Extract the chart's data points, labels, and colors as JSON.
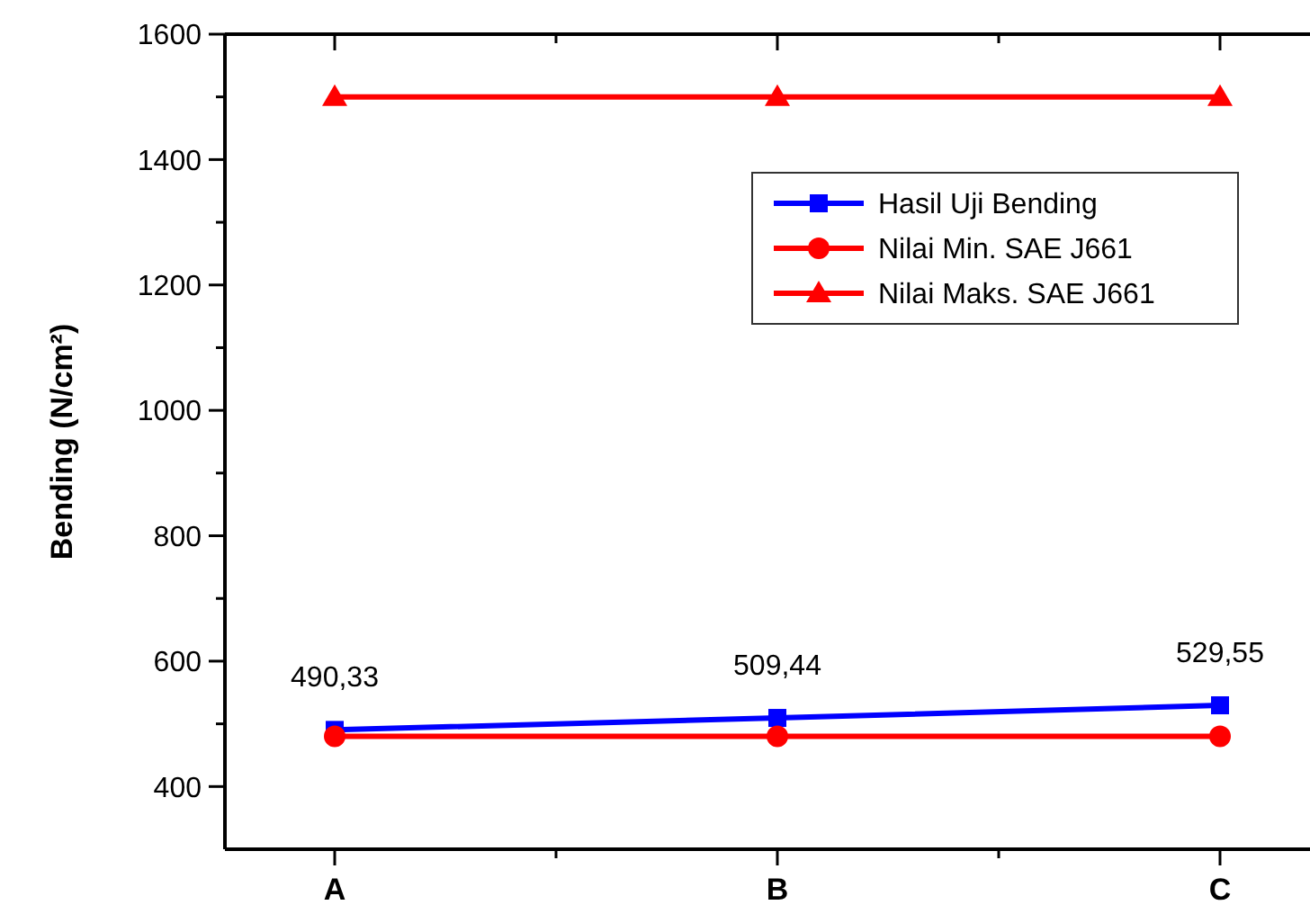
{
  "chart_data": {
    "type": "line",
    "ylabel": "Bending (N/cm²)",
    "categories": [
      "A",
      "B",
      "C"
    ],
    "series": [
      {
        "name": "Hasil Uji Bending",
        "color": "#0000ff",
        "marker": "square",
        "values": [
          490.33,
          509.44,
          529.55
        ],
        "value_labels": [
          "490,33",
          "509,44",
          "529,55"
        ]
      },
      {
        "name": "Nilai Min. SAE J661",
        "color": "#ff0000",
        "marker": "circle",
        "values": [
          480,
          480,
          480
        ]
      },
      {
        "name": "Nilai Maks. SAE J661",
        "color": "#ff0000",
        "marker": "triangle",
        "values": [
          1500,
          1500,
          1500
        ]
      }
    ],
    "ylim": [
      300,
      1600
    ],
    "yticks": [
      400,
      {
        "value": 500,
        "label": null
      },
      600,
      {
        "value": 700,
        "label": null
      },
      800,
      {
        "value": 900,
        "label": null
      },
      1000,
      {
        "value": 1100,
        "label": null
      },
      1200,
      {
        "value": 1300,
        "label": null
      },
      1400,
      {
        "value": 1500,
        "label": null
      },
      1600
    ],
    "legend": "top right",
    "grid": false
  }
}
